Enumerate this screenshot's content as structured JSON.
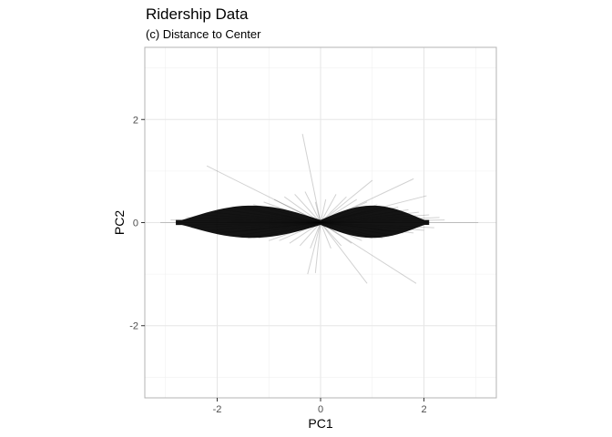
{
  "chart_data": {
    "type": "line",
    "title": "Ridership Data",
    "subtitle": "(c) Distance to Center",
    "xlabel": "PC1",
    "ylabel": "PC2",
    "xlim": [
      -3.4,
      3.4
    ],
    "ylim": [
      -3.4,
      3.4
    ],
    "x_ticks": [
      -2,
      0,
      2
    ],
    "x_tick_labels": [
      "-2",
      "0",
      "2"
    ],
    "y_ticks": [
      -2,
      0,
      2
    ],
    "y_tick_labels": [
      "-2",
      "0",
      "2"
    ],
    "grid": true,
    "center": [
      0,
      0
    ],
    "segment_endpoints": {
      "x": [
        -3.1,
        -2.9,
        -2.8,
        -2.6,
        -2.5,
        -2.3,
        -2.2,
        -2.1,
        -2.0,
        -1.9,
        -1.8,
        -1.7,
        -1.6,
        -1.5,
        -1.4,
        -1.3,
        -1.2,
        -1.1,
        -1.0,
        -0.9,
        -0.8,
        -0.7,
        -0.6,
        -0.5,
        -0.4,
        -0.3,
        -0.2,
        -0.1,
        0.1,
        0.2,
        0.3,
        0.4,
        0.5,
        0.6,
        0.7,
        0.8,
        0.9,
        1.0,
        1.1,
        1.2,
        1.3,
        1.4,
        1.5,
        1.6,
        1.7,
        1.8,
        1.9,
        2.0,
        2.1,
        2.2,
        2.3,
        2.4,
        3.05,
        -2.2,
        -0.35,
        1.0,
        1.8,
        2.05,
        0.9,
        1.85,
        -0.1,
        -0.25
      ],
      "y": [
        0.0,
        0.05,
        -0.05,
        0.1,
        -0.1,
        0.15,
        -0.15,
        0.2,
        -0.2,
        0.25,
        -0.2,
        0.3,
        -0.25,
        0.3,
        -0.3,
        0.35,
        -0.3,
        0.4,
        -0.35,
        0.45,
        -0.35,
        0.5,
        -0.4,
        0.55,
        -0.45,
        0.6,
        -0.5,
        0.4,
        0.45,
        -0.5,
        0.55,
        -0.45,
        0.5,
        -0.4,
        0.45,
        -0.35,
        0.4,
        -0.3,
        0.35,
        -0.3,
        0.3,
        -0.25,
        0.3,
        -0.2,
        0.25,
        -0.2,
        0.2,
        -0.15,
        0.15,
        -0.1,
        0.1,
        0.05,
        0.0,
        1.1,
        1.72,
        0.82,
        0.85,
        0.52,
        -1.18,
        -1.18,
        -0.98,
        -1.0
      ]
    }
  }
}
